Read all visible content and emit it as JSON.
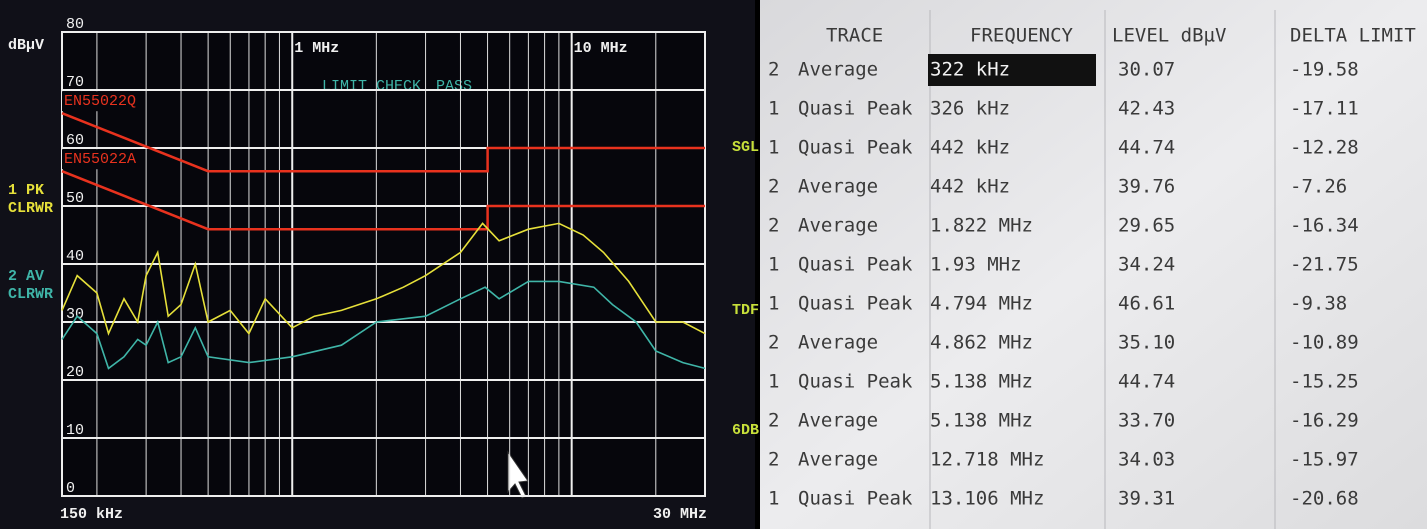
{
  "chart_data": {
    "type": "line",
    "y_label": "dBµV",
    "log_x": true,
    "grid": true,
    "xlim": [
      0.15,
      30
    ],
    "ylim": [
      0,
      80
    ],
    "xticks": [
      {
        "value": 0.15,
        "label": "150 kHz"
      },
      {
        "value": 1,
        "label": "1 MHz"
      },
      {
        "value": 10,
        "label": "10 MHz"
      },
      {
        "value": 30,
        "label": "30 MHz"
      }
    ],
    "yticks": [
      0,
      10,
      20,
      30,
      40,
      50,
      60,
      70,
      80
    ],
    "status": {
      "label": "LIMIT CHECK",
      "result": "PASS"
    },
    "side_labels": [
      "SGL",
      "TDF",
      "6DB"
    ],
    "series": [
      {
        "name": "EN55022Q",
        "color": "#e8321e",
        "x": [
          0.15,
          0.5,
          5,
          5,
          30
        ],
        "values": [
          66,
          56,
          56,
          60,
          60
        ]
      },
      {
        "name": "EN55022A",
        "color": "#e8321e",
        "x": [
          0.15,
          0.5,
          5,
          5,
          30
        ],
        "values": [
          56,
          46,
          46,
          50,
          50
        ]
      },
      {
        "name": "1 PK",
        "mode": "CLRWR",
        "color": "#e6e03a",
        "x": [
          0.15,
          0.17,
          0.2,
          0.22,
          0.25,
          0.28,
          0.3,
          0.33,
          0.36,
          0.4,
          0.45,
          0.5,
          0.6,
          0.7,
          0.8,
          1,
          1.2,
          1.5,
          2,
          2.5,
          3,
          4,
          4.8,
          5.5,
          7,
          9,
          11,
          13,
          16,
          20,
          25,
          30
        ],
        "values": [
          32,
          38,
          35,
          28,
          34,
          30,
          38,
          42,
          31,
          33,
          40,
          30,
          32,
          28,
          34,
          29,
          31,
          32,
          34,
          36,
          38,
          42,
          47,
          44,
          46,
          47,
          45,
          42,
          37,
          30,
          30,
          28
        ]
      },
      {
        "name": "2 AV",
        "mode": "CLRWR",
        "color": "#3fb5a8",
        "x": [
          0.15,
          0.17,
          0.2,
          0.22,
          0.25,
          0.28,
          0.3,
          0.33,
          0.36,
          0.4,
          0.45,
          0.5,
          0.7,
          1,
          1.5,
          2,
          3,
          4,
          4.9,
          5.5,
          7,
          9,
          12,
          14,
          17,
          20,
          25,
          30
        ],
        "values": [
          27,
          31,
          28,
          22,
          24,
          27,
          26,
          30,
          23,
          24,
          29,
          24,
          23,
          24,
          26,
          30,
          31,
          34,
          36,
          34,
          37,
          37,
          36,
          33,
          30,
          25,
          23,
          22
        ]
      }
    ]
  },
  "table": {
    "headers": [
      "TRACE",
      "FREQUENCY",
      "LEVEL dBµV",
      "DELTA LIMIT dB"
    ],
    "rows": [
      [
        "2",
        "Average",
        "322 kHz",
        "30.07",
        "-19.58"
      ],
      [
        "1",
        "Quasi Peak",
        "326 kHz",
        "42.43",
        "-17.11"
      ],
      [
        "1",
        "Quasi Peak",
        "442 kHz",
        "44.74",
        "-12.28"
      ],
      [
        "2",
        "Average",
        "442 kHz",
        "39.76",
        "-7.26"
      ],
      [
        "2",
        "Average",
        "1.822 MHz",
        "29.65",
        "-16.34"
      ],
      [
        "1",
        "Quasi Peak",
        "1.93 MHz",
        "34.24",
        "-21.75"
      ],
      [
        "1",
        "Quasi Peak",
        "4.794 MHz",
        "46.61",
        "-9.38"
      ],
      [
        "2",
        "Average",
        "4.862 MHz",
        "35.10",
        "-10.89"
      ],
      [
        "1",
        "Quasi Peak",
        "5.138 MHz",
        "44.74",
        "-15.25"
      ],
      [
        "2",
        "Average",
        "5.138 MHz",
        "33.70",
        "-16.29"
      ],
      [
        "2",
        "Average",
        "12.718 MHz",
        "34.03",
        "-15.97"
      ],
      [
        "1",
        "Quasi Peak",
        "13.106 MHz",
        "39.31",
        "-20.68"
      ]
    ]
  }
}
